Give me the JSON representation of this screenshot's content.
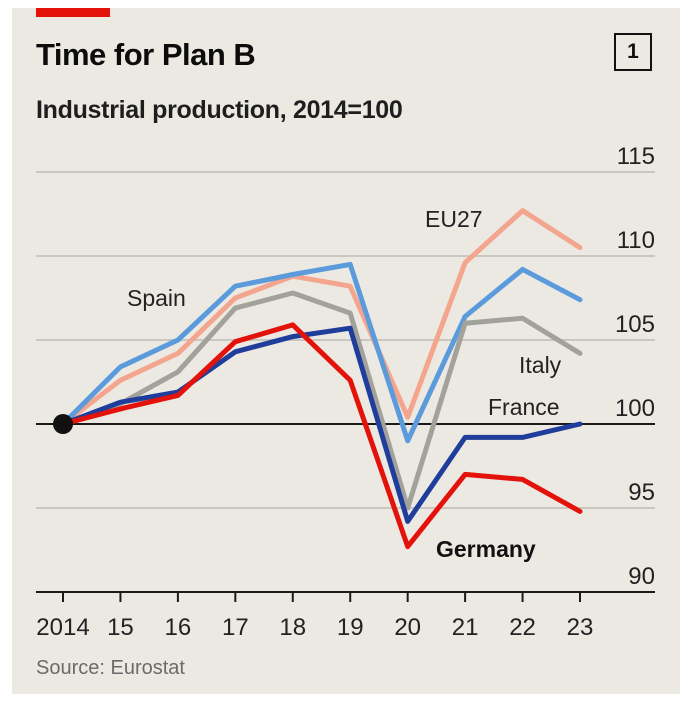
{
  "header": {
    "title": "Time for Plan B",
    "subtitle": "Industrial production, 2014=100",
    "badge": "1"
  },
  "footer": {
    "source": "Source: Eurostat"
  },
  "chart_data": {
    "type": "line",
    "title": "Time for Plan B",
    "subtitle": "Industrial production, 2014=100",
    "x_labels": [
      "2014",
      "15",
      "16",
      "17",
      "18",
      "19",
      "20",
      "21",
      "22",
      "23"
    ],
    "y_ticks": [
      "90",
      "95",
      "100",
      "105",
      "110",
      "115"
    ],
    "ylim": [
      90,
      115
    ],
    "baseline": 100,
    "grid": true,
    "y_axis_side": "right",
    "series": [
      {
        "name": "EU27",
        "color": "#f4a58e",
        "values": [
          100,
          102.6,
          104.2,
          107.5,
          108.8,
          108.2,
          100.4,
          109.6,
          112.7,
          110.5
        ]
      },
      {
        "name": "Spain",
        "color": "#5b9bdc",
        "values": [
          100,
          103.4,
          105.0,
          108.2,
          108.9,
          109.5,
          99.0,
          106.4,
          109.2,
          107.4
        ]
      },
      {
        "name": "Italy",
        "color": "#a2a29b",
        "values": [
          100,
          101.2,
          103.1,
          106.9,
          107.8,
          106.6,
          95.0,
          106.0,
          106.3,
          104.2
        ]
      },
      {
        "name": "France",
        "color": "#1f3e9c",
        "values": [
          100,
          101.3,
          101.9,
          104.3,
          105.2,
          105.7,
          94.2,
          99.2,
          99.2,
          100.0
        ]
      },
      {
        "name": "Germany",
        "color": "#e3120b",
        "values": [
          100,
          100.9,
          101.7,
          104.9,
          105.9,
          102.6,
          92.7,
          97.0,
          96.7,
          94.8
        ]
      }
    ],
    "series_labels": [
      "EU27",
      "Spain",
      "Italy",
      "France",
      "Germany"
    ]
  }
}
